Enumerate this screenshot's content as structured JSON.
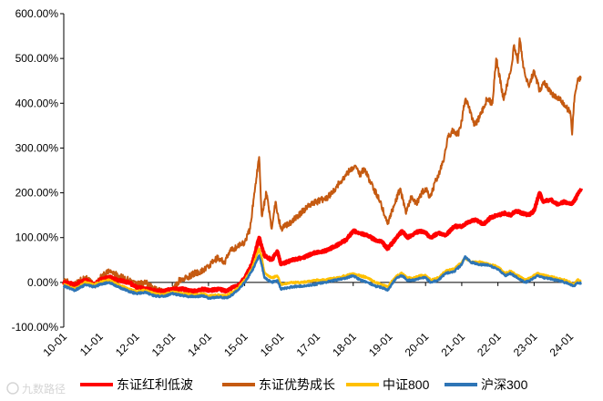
{
  "chart_data": {
    "type": "line",
    "title": "",
    "xlabel": "",
    "ylabel": "",
    "ylim": [
      -100,
      600
    ],
    "yticks": [
      "600.00%",
      "500.00%",
      "400.00%",
      "300.00%",
      "200.00%",
      "100.00%",
      "0.00%",
      "-100.00%"
    ],
    "ytick_values": [
      600,
      500,
      400,
      300,
      200,
      100,
      0,
      -100
    ],
    "xticks": [
      "10-01",
      "11-01",
      "12-01",
      "13-01",
      "14-01",
      "15-01",
      "16-01",
      "17-01",
      "18-01",
      "19-01",
      "20-01",
      "21-01",
      "22-01",
      "23-01",
      "24-01"
    ],
    "xlim": [
      2010.0,
      2024.3
    ],
    "grid": false,
    "legend_position": "bottom",
    "series": [
      {
        "name": "东证优势成长",
        "color": "#c55a11",
        "width": 2,
        "points": [
          [
            2010.0,
            5
          ],
          [
            2010.3,
            -5
          ],
          [
            2010.6,
            12
          ],
          [
            2010.85,
            -8
          ],
          [
            2011.0,
            10
          ],
          [
            2011.25,
            25
          ],
          [
            2011.5,
            15
          ],
          [
            2011.8,
            5
          ],
          [
            2012.0,
            -5
          ],
          [
            2012.25,
            0
          ],
          [
            2012.5,
            -15
          ],
          [
            2012.75,
            -22
          ],
          [
            2013.0,
            -18
          ],
          [
            2013.2,
            5
          ],
          [
            2013.4,
            10
          ],
          [
            2013.6,
            20
          ],
          [
            2013.8,
            25
          ],
          [
            2014.0,
            35
          ],
          [
            2014.25,
            55
          ],
          [
            2014.45,
            45
          ],
          [
            2014.6,
            70
          ],
          [
            2014.8,
            80
          ],
          [
            2015.0,
            90
          ],
          [
            2015.15,
            120
          ],
          [
            2015.3,
            220
          ],
          [
            2015.4,
            280
          ],
          [
            2015.47,
            150
          ],
          [
            2015.6,
            200
          ],
          [
            2015.75,
            120
          ],
          [
            2015.85,
            180
          ],
          [
            2016.0,
            120
          ],
          [
            2016.2,
            130
          ],
          [
            2016.5,
            150
          ],
          [
            2016.8,
            175
          ],
          [
            2017.0,
            180
          ],
          [
            2017.3,
            190
          ],
          [
            2017.6,
            220
          ],
          [
            2017.9,
            250
          ],
          [
            2018.05,
            260
          ],
          [
            2018.2,
            240
          ],
          [
            2018.3,
            255
          ],
          [
            2018.5,
            220
          ],
          [
            2018.75,
            180
          ],
          [
            2018.95,
            130
          ],
          [
            2019.0,
            145
          ],
          [
            2019.15,
            175
          ],
          [
            2019.3,
            210
          ],
          [
            2019.45,
            155
          ],
          [
            2019.6,
            190
          ],
          [
            2019.75,
            175
          ],
          [
            2019.9,
            200
          ],
          [
            2020.0,
            210
          ],
          [
            2020.12,
            190
          ],
          [
            2020.3,
            230
          ],
          [
            2020.5,
            270
          ],
          [
            2020.6,
            320
          ],
          [
            2020.75,
            340
          ],
          [
            2020.9,
            330
          ],
          [
            2021.0,
            360
          ],
          [
            2021.1,
            410
          ],
          [
            2021.2,
            390
          ],
          [
            2021.35,
            350
          ],
          [
            2021.5,
            370
          ],
          [
            2021.7,
            410
          ],
          [
            2021.85,
            400
          ],
          [
            2021.95,
            500
          ],
          [
            2022.0,
            480
          ],
          [
            2022.15,
            410
          ],
          [
            2022.25,
            440
          ],
          [
            2022.35,
            470
          ],
          [
            2022.45,
            530
          ],
          [
            2022.55,
            490
          ],
          [
            2022.6,
            545
          ],
          [
            2022.7,
            480
          ],
          [
            2022.85,
            440
          ],
          [
            2023.0,
            470
          ],
          [
            2023.15,
            430
          ],
          [
            2023.3,
            445
          ],
          [
            2023.5,
            420
          ],
          [
            2023.7,
            410
          ],
          [
            2023.85,
            395
          ],
          [
            2024.0,
            380
          ],
          [
            2024.05,
            330
          ],
          [
            2024.1,
            400
          ],
          [
            2024.2,
            450
          ],
          [
            2024.3,
            460
          ]
        ]
      },
      {
        "name": "东证红利低波",
        "color": "#ff0000",
        "width": 4,
        "points": [
          [
            2010.0,
            0
          ],
          [
            2010.3,
            -5
          ],
          [
            2010.6,
            5
          ],
          [
            2010.85,
            -5
          ],
          [
            2011.0,
            5
          ],
          [
            2011.25,
            12
          ],
          [
            2011.5,
            5
          ],
          [
            2011.8,
            0
          ],
          [
            2012.0,
            -10
          ],
          [
            2012.25,
            -15
          ],
          [
            2012.5,
            -18
          ],
          [
            2012.75,
            -20
          ],
          [
            2013.0,
            -15
          ],
          [
            2013.3,
            -15
          ],
          [
            2013.6,
            -20
          ],
          [
            2013.85,
            -15
          ],
          [
            2014.0,
            -18
          ],
          [
            2014.3,
            -15
          ],
          [
            2014.5,
            -20
          ],
          [
            2014.7,
            -10
          ],
          [
            2014.85,
            -5
          ],
          [
            2015.0,
            10
          ],
          [
            2015.2,
            40
          ],
          [
            2015.4,
            100
          ],
          [
            2015.47,
            80
          ],
          [
            2015.55,
            60
          ],
          [
            2015.75,
            50
          ],
          [
            2015.9,
            70
          ],
          [
            2016.0,
            40
          ],
          [
            2016.3,
            50
          ],
          [
            2016.6,
            55
          ],
          [
            2016.9,
            65
          ],
          [
            2017.2,
            70
          ],
          [
            2017.5,
            80
          ],
          [
            2017.8,
            95
          ],
          [
            2018.0,
            115
          ],
          [
            2018.2,
            110
          ],
          [
            2018.4,
            105
          ],
          [
            2018.6,
            95
          ],
          [
            2018.8,
            90
          ],
          [
            2018.95,
            75
          ],
          [
            2019.0,
            80
          ],
          [
            2019.2,
            100
          ],
          [
            2019.35,
            115
          ],
          [
            2019.5,
            100
          ],
          [
            2019.7,
            110
          ],
          [
            2019.85,
            115
          ],
          [
            2020.0,
            110
          ],
          [
            2020.15,
            100
          ],
          [
            2020.35,
            110
          ],
          [
            2020.55,
            105
          ],
          [
            2020.8,
            125
          ],
          [
            2021.0,
            125
          ],
          [
            2021.2,
            135
          ],
          [
            2021.4,
            140
          ],
          [
            2021.6,
            130
          ],
          [
            2021.8,
            145
          ],
          [
            2022.0,
            150
          ],
          [
            2022.2,
            155
          ],
          [
            2022.35,
            150
          ],
          [
            2022.5,
            160
          ],
          [
            2022.65,
            155
          ],
          [
            2022.85,
            150
          ],
          [
            2023.0,
            160
          ],
          [
            2023.15,
            200
          ],
          [
            2023.25,
            180
          ],
          [
            2023.45,
            185
          ],
          [
            2023.65,
            175
          ],
          [
            2023.85,
            180
          ],
          [
            2024.0,
            175
          ],
          [
            2024.1,
            180
          ],
          [
            2024.2,
            195
          ],
          [
            2024.3,
            210
          ]
        ]
      },
      {
        "name": "中证800",
        "color": "#ffc000",
        "width": 2.5,
        "points": [
          [
            2010.0,
            -5
          ],
          [
            2010.3,
            -15
          ],
          [
            2010.6,
            0
          ],
          [
            2010.85,
            -5
          ],
          [
            2011.0,
            0
          ],
          [
            2011.25,
            5
          ],
          [
            2011.5,
            -5
          ],
          [
            2011.8,
            -15
          ],
          [
            2012.0,
            -20
          ],
          [
            2012.25,
            -18
          ],
          [
            2012.5,
            -25
          ],
          [
            2012.75,
            -28
          ],
          [
            2013.0,
            -22
          ],
          [
            2013.3,
            -25
          ],
          [
            2013.6,
            -28
          ],
          [
            2013.85,
            -25
          ],
          [
            2014.0,
            -30
          ],
          [
            2014.3,
            -28
          ],
          [
            2014.5,
            -30
          ],
          [
            2014.7,
            -20
          ],
          [
            2014.85,
            -10
          ],
          [
            2015.0,
            5
          ],
          [
            2015.2,
            30
          ],
          [
            2015.4,
            75
          ],
          [
            2015.47,
            55
          ],
          [
            2015.55,
            20
          ],
          [
            2015.75,
            10
          ],
          [
            2015.9,
            15
          ],
          [
            2016.0,
            -5
          ],
          [
            2016.3,
            0
          ],
          [
            2016.6,
            0
          ],
          [
            2016.9,
            5
          ],
          [
            2017.2,
            5
          ],
          [
            2017.5,
            10
          ],
          [
            2017.8,
            15
          ],
          [
            2018.0,
            20
          ],
          [
            2018.2,
            15
          ],
          [
            2018.4,
            10
          ],
          [
            2018.6,
            0
          ],
          [
            2018.8,
            -5
          ],
          [
            2018.95,
            -10
          ],
          [
            2019.0,
            -5
          ],
          [
            2019.2,
            15
          ],
          [
            2019.35,
            20
          ],
          [
            2019.5,
            10
          ],
          [
            2019.7,
            10
          ],
          [
            2019.85,
            15
          ],
          [
            2020.0,
            15
          ],
          [
            2020.15,
            5
          ],
          [
            2020.35,
            10
          ],
          [
            2020.55,
            25
          ],
          [
            2020.8,
            30
          ],
          [
            2021.0,
            45
          ],
          [
            2021.1,
            55
          ],
          [
            2021.25,
            45
          ],
          [
            2021.5,
            45
          ],
          [
            2021.75,
            40
          ],
          [
            2022.0,
            35
          ],
          [
            2022.2,
            20
          ],
          [
            2022.35,
            25
          ],
          [
            2022.55,
            15
          ],
          [
            2022.75,
            5
          ],
          [
            2022.9,
            10
          ],
          [
            2023.1,
            20
          ],
          [
            2023.3,
            15
          ],
          [
            2023.6,
            10
          ],
          [
            2023.85,
            5
          ],
          [
            2024.0,
            0
          ],
          [
            2024.1,
            -5
          ],
          [
            2024.2,
            5
          ],
          [
            2024.3,
            5
          ]
        ]
      },
      {
        "name": "沪深300",
        "color": "#2e75b6",
        "width": 2.5,
        "points": [
          [
            2010.0,
            -8
          ],
          [
            2010.3,
            -18
          ],
          [
            2010.6,
            -5
          ],
          [
            2010.85,
            -10
          ],
          [
            2011.0,
            -5
          ],
          [
            2011.25,
            0
          ],
          [
            2011.5,
            -10
          ],
          [
            2011.8,
            -20
          ],
          [
            2012.0,
            -25
          ],
          [
            2012.25,
            -22
          ],
          [
            2012.5,
            -30
          ],
          [
            2012.75,
            -32
          ],
          [
            2013.0,
            -25
          ],
          [
            2013.3,
            -30
          ],
          [
            2013.6,
            -32
          ],
          [
            2013.85,
            -30
          ],
          [
            2014.0,
            -35
          ],
          [
            2014.3,
            -33
          ],
          [
            2014.5,
            -35
          ],
          [
            2014.7,
            -25
          ],
          [
            2014.85,
            -15
          ],
          [
            2015.0,
            0
          ],
          [
            2015.2,
            25
          ],
          [
            2015.4,
            60
          ],
          [
            2015.47,
            40
          ],
          [
            2015.55,
            10
          ],
          [
            2015.75,
            0
          ],
          [
            2015.9,
            5
          ],
          [
            2016.0,
            -15
          ],
          [
            2016.3,
            -10
          ],
          [
            2016.6,
            -8
          ],
          [
            2016.9,
            -5
          ],
          [
            2017.2,
            0
          ],
          [
            2017.5,
            5
          ],
          [
            2017.8,
            10
          ],
          [
            2018.0,
            15
          ],
          [
            2018.2,
            5
          ],
          [
            2018.4,
            0
          ],
          [
            2018.6,
            -8
          ],
          [
            2018.8,
            -12
          ],
          [
            2018.95,
            -18
          ],
          [
            2019.0,
            -12
          ],
          [
            2019.2,
            10
          ],
          [
            2019.35,
            15
          ],
          [
            2019.5,
            5
          ],
          [
            2019.7,
            5
          ],
          [
            2019.85,
            10
          ],
          [
            2020.0,
            10
          ],
          [
            2020.15,
            0
          ],
          [
            2020.35,
            5
          ],
          [
            2020.55,
            20
          ],
          [
            2020.8,
            25
          ],
          [
            2021.0,
            40
          ],
          [
            2021.1,
            58
          ],
          [
            2021.25,
            45
          ],
          [
            2021.5,
            40
          ],
          [
            2021.75,
            38
          ],
          [
            2022.0,
            30
          ],
          [
            2022.2,
            15
          ],
          [
            2022.35,
            20
          ],
          [
            2022.55,
            10
          ],
          [
            2022.75,
            0
          ],
          [
            2022.9,
            5
          ],
          [
            2023.1,
            15
          ],
          [
            2023.3,
            10
          ],
          [
            2023.6,
            5
          ],
          [
            2023.85,
            0
          ],
          [
            2024.0,
            -5
          ],
          [
            2024.1,
            -8
          ],
          [
            2024.2,
            0
          ],
          [
            2024.3,
            -2
          ]
        ]
      }
    ],
    "legend_order": [
      "东证红利低波",
      "东证优势成长",
      "中证800",
      "沪深300"
    ]
  },
  "watermark": "九数路径"
}
